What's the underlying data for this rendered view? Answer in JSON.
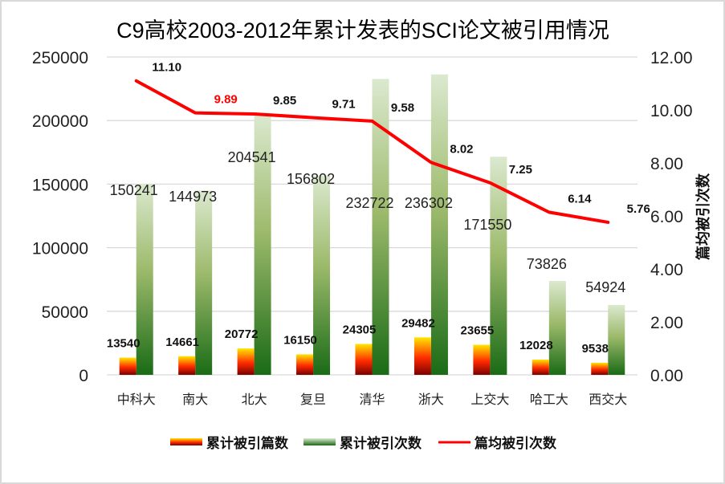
{
  "chart_data": {
    "type": "bar",
    "title": "C9高校2003-2012年累计发表的SCI论文被引用情况",
    "categories": [
      "中科大",
      "南大",
      "北大",
      "复旦",
      "清华",
      "浙大",
      "上交大",
      "哈工大",
      "西交大"
    ],
    "series": [
      {
        "name": "累计被引篇数",
        "type": "bar",
        "axis": "left",
        "values": [
          13540,
          14661,
          20772,
          16150,
          24305,
          29482,
          23655,
          12028,
          9538
        ],
        "colors": {
          "top": "#ffe600",
          "mid": "#ff2a00",
          "bottom": "#7a0000"
        }
      },
      {
        "name": "累计被引次数",
        "type": "bar",
        "axis": "left",
        "values": [
          150241,
          144973,
          204541,
          156802,
          232722,
          236302,
          171550,
          73826,
          54924
        ],
        "colors": {
          "top": "#dbe9cf",
          "mid": "#9dba6c",
          "bottom": "#1a6b16"
        }
      },
      {
        "name": "篇均被引次数",
        "type": "line",
        "axis": "right",
        "values": [
          11.1,
          9.89,
          9.85,
          9.71,
          9.58,
          8.02,
          7.25,
          6.14,
          5.76
        ],
        "labels": [
          "11.10",
          "9.89",
          "9.85",
          "9.71",
          "9.58",
          "8.02",
          "7.25",
          "6.14",
          "5.76"
        ],
        "highlight_label_index": 1,
        "color": "#ff0000",
        "highlight_color": "#ff0000"
      }
    ],
    "y_left": {
      "range": [
        0,
        250000
      ],
      "ticks": [
        "0",
        "50000",
        "100000",
        "150000",
        "200000",
        "250000"
      ],
      "tick_values": [
        0,
        50000,
        100000,
        150000,
        200000,
        250000
      ],
      "label": ""
    },
    "y_right": {
      "range": [
        0,
        12
      ],
      "ticks": [
        "0.00",
        "2.00",
        "4.00",
        "6.00",
        "8.00",
        "10.00",
        "12.00"
      ],
      "tick_values": [
        0,
        2,
        4,
        6,
        8,
        10,
        12
      ],
      "label": "篇均被引次数"
    },
    "grid": true,
    "gridline_color": "#d9d9d9",
    "legend": {
      "position": "bottom",
      "items": [
        "累计被引篇数",
        "累计被引次数",
        "篇均被引次数"
      ]
    }
  }
}
